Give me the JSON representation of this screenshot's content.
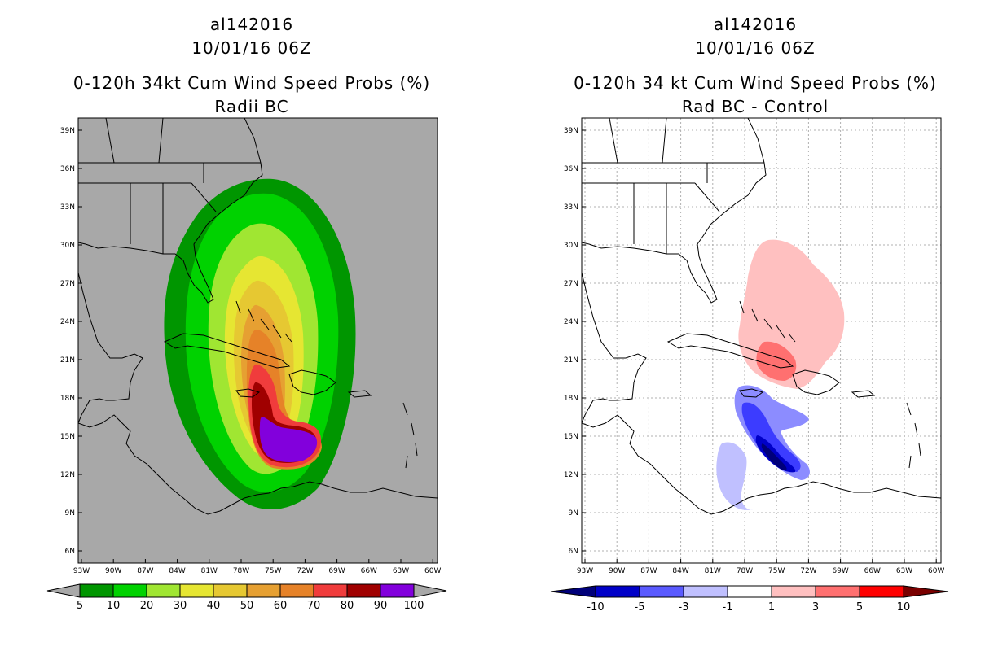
{
  "left": {
    "storm_id": "al142016",
    "datetime": "10/01/16 06Z",
    "title": "0-120h 34kt Cum Wind Speed Probs (%)",
    "subtitle": "Radii BC",
    "background_color": "#a8a8a8",
    "colorbar": {
      "labels": [
        "5",
        "10",
        "20",
        "30",
        "40",
        "50",
        "60",
        "70",
        "80",
        "90",
        "100"
      ],
      "colors": [
        "#009600",
        "#00d200",
        "#a0e632",
        "#e6e632",
        "#e6c832",
        "#e6a032",
        "#e68228",
        "#f03c3c",
        "#a00000",
        "#8200dc"
      ]
    }
  },
  "right": {
    "storm_id": "al142016",
    "datetime": "10/01/16 06Z",
    "title": "0-120h 34 kt Cum Wind Speed Probs (%)",
    "subtitle": "Rad BC - Control",
    "background_color": "#ffffff",
    "colorbar": {
      "labels": [
        "-10",
        "-5",
        "-3",
        "-1",
        "1",
        "3",
        "5",
        "10"
      ],
      "colors": [
        "#0000c8",
        "#5a5aff",
        "#c0c0ff",
        "#ffffff",
        "#ffc0c0",
        "#ff7070",
        "#ff0000"
      ],
      "end_left": "#00007a",
      "end_right": "#7a0000"
    }
  },
  "axes": {
    "lon_labels": [
      "93W",
      "90W",
      "87W",
      "84W",
      "81W",
      "78W",
      "75W",
      "72W",
      "69W",
      "66W",
      "63W",
      "60W"
    ],
    "lat_labels": [
      "39N",
      "36N",
      "33N",
      "30N",
      "27N",
      "24N",
      "21N",
      "18N",
      "15N",
      "12N",
      "9N",
      "6N"
    ]
  }
}
